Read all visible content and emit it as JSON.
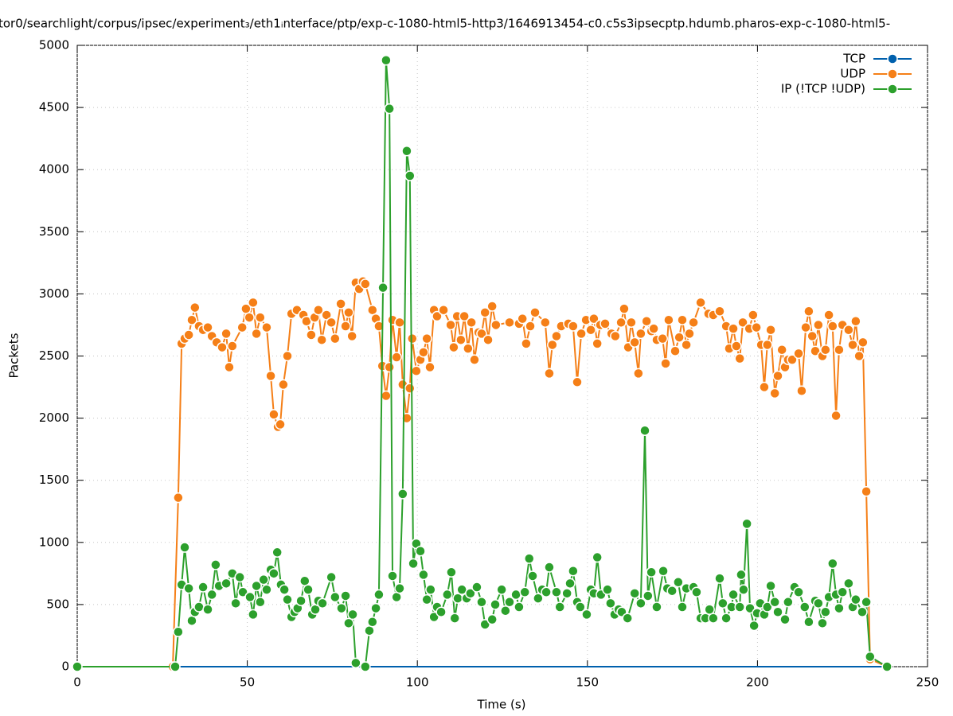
{
  "chart_data": {
    "type": "line",
    "title": "tor0/searchlight/corpus/ipsec/experiment₃/eth1ᵢnterface/ptp/exp-c-1080-html5-http3/1646913454-c0.c5s3ipsecptp.hdumb.pharos-exp-c-1080-html5-",
    "x_label": "Time (s)",
    "y_label": "Packets",
    "xlim": [
      0,
      250
    ],
    "xticks": [
      0,
      50,
      100,
      150,
      200,
      250
    ],
    "ylim": [
      0,
      5000
    ],
    "yticks": [
      0,
      500,
      1000,
      1500,
      2000,
      2500,
      3000,
      3500,
      4000,
      4500,
      5000
    ],
    "grid": true,
    "legend": "upper right",
    "series": [
      {
        "name": "TCP",
        "color": "#0060ad",
        "x": [
          0,
          238.1
        ],
        "values": [
          0,
          0
        ]
      },
      {
        "name": "UDP",
        "color": "#f57f17",
        "x": [
          0,
          28.1,
          29.7,
          30.7,
          31.6,
          32.8,
          33.7,
          34.6,
          35.8,
          37.0,
          38.4,
          39.6,
          41.0,
          42.6,
          43.8,
          44.7,
          45.6,
          48.5,
          49.6,
          50.6,
          51.7,
          52.7,
          53.8,
          55.7,
          56.9,
          57.8,
          59.0,
          59.7,
          60.6,
          61.8,
          63.0,
          64.6,
          66.5,
          67.4,
          68.8,
          69.8,
          70.9,
          71.9,
          73.3,
          74.7,
          75.8,
          77.5,
          78.9,
          79.8,
          80.8,
          81.9,
          82.9,
          84.0,
          84.7,
          86.8,
          87.8,
          88.7,
          89.7,
          90.8,
          91.8,
          92.7,
          93.9,
          94.8,
          95.7,
          96.9,
          97.8,
          98.5,
          99.7,
          100.9,
          101.8,
          102.8,
          103.7,
          104.9,
          105.8,
          107.7,
          109.8,
          110.7,
          111.7,
          112.8,
          113.8,
          114.9,
          115.9,
          116.8,
          118.0,
          118.9,
          119.9,
          120.8,
          122.0,
          123.1,
          127.1,
          129.9,
          130.9,
          132.0,
          133.2,
          134.6,
          137.6,
          138.8,
          139.7,
          140.9,
          142.3,
          144.4,
          145.8,
          147.0,
          148.2,
          149.6,
          151.0,
          151.9,
          152.9,
          153.8,
          155.2,
          157.1,
          158.2,
          159.9,
          160.8,
          162.0,
          162.9,
          163.9,
          165.0,
          165.7,
          167.4,
          168.8,
          169.5,
          170.4,
          172.1,
          173.0,
          173.9,
          175.8,
          177.0,
          177.9,
          179.1,
          180.0,
          181.2,
          183.3,
          185.6,
          187.0,
          188.9,
          190.8,
          191.7,
          192.9,
          193.8,
          194.8,
          195.7,
          197.6,
          198.7,
          199.7,
          201.1,
          202.0,
          202.9,
          203.9,
          205.1,
          206.0,
          207.2,
          208.1,
          209.0,
          210.2,
          212.1,
          213.0,
          214.2,
          215.1,
          216.1,
          217.0,
          217.9,
          219.1,
          220.0,
          221.0,
          222.1,
          223.1,
          224.0,
          225.0,
          226.8,
          228.0,
          228.9,
          229.9,
          231.0,
          232.0,
          233.1,
          238.1
        ],
        "values": [
          0,
          0,
          1360,
          2600,
          2640,
          2670,
          2790,
          2890,
          2740,
          2710,
          2730,
          2660,
          2610,
          2570,
          2680,
          2410,
          2580,
          2730,
          2880,
          2810,
          2930,
          2680,
          2810,
          2730,
          2340,
          2030,
          1930,
          1950,
          2270,
          2500,
          2840,
          2870,
          2830,
          2780,
          2670,
          2810,
          2870,
          2630,
          2830,
          2770,
          2640,
          2920,
          2740,
          2850,
          2660,
          3090,
          3040,
          3100,
          3080,
          2870,
          2800,
          2740,
          2420,
          2180,
          2410,
          2790,
          2490,
          2770,
          2270,
          2000,
          2240,
          2640,
          2380,
          2470,
          2530,
          2640,
          2410,
          2870,
          2820,
          2870,
          2750,
          2570,
          2820,
          2630,
          2820,
          2560,
          2770,
          2470,
          2690,
          2680,
          2850,
          2630,
          2900,
          2750,
          2770,
          2760,
          2800,
          2600,
          2740,
          2850,
          2770,
          2360,
          2590,
          2660,
          2740,
          2760,
          2740,
          2290,
          2680,
          2790,
          2710,
          2800,
          2600,
          2750,
          2760,
          2680,
          2660,
          2770,
          2880,
          2570,
          2770,
          2610,
          2360,
          2680,
          2780,
          2700,
          2720,
          2630,
          2640,
          2440,
          2790,
          2540,
          2650,
          2790,
          2590,
          2680,
          2770,
          2930,
          2840,
          2830,
          2860,
          2740,
          2560,
          2720,
          2580,
          2480,
          2770,
          2720,
          2830,
          2730,
          2590,
          2250,
          2590,
          2710,
          2200,
          2340,
          2550,
          2410,
          2470,
          2470,
          2520,
          2220,
          2730,
          2860,
          2660,
          2540,
          2750,
          2500,
          2550,
          2830,
          2740,
          2020,
          2550,
          2750,
          2710,
          2590,
          2780,
          2500,
          2610,
          1410,
          60,
          0
        ]
      },
      {
        "name": "IP (!TCP  !UDP)",
        "color": "#2ca02c",
        "x": [
          0,
          28.8,
          29.7,
          30.7,
          31.6,
          32.8,
          33.7,
          34.6,
          35.8,
          37.0,
          38.4,
          39.6,
          40.7,
          41.7,
          43.8,
          45.6,
          46.6,
          47.8,
          48.7,
          50.8,
          51.7,
          52.7,
          53.8,
          54.8,
          55.7,
          56.9,
          57.8,
          58.8,
          59.9,
          60.9,
          61.8,
          63.0,
          63.9,
          64.8,
          65.8,
          66.9,
          67.9,
          69.1,
          70.0,
          70.9,
          72.1,
          74.7,
          75.8,
          77.7,
          78.9,
          79.8,
          81.0,
          81.9,
          84.7,
          85.9,
          86.8,
          87.8,
          88.7,
          89.9,
          90.8,
          91.8,
          92.7,
          93.9,
          94.8,
          95.7,
          96.9,
          97.8,
          98.8,
          99.7,
          100.9,
          101.8,
          102.8,
          103.9,
          104.9,
          105.8,
          107.0,
          108.8,
          110.0,
          111.0,
          111.9,
          113.1,
          114.5,
          115.6,
          117.5,
          118.9,
          119.9,
          122.0,
          122.9,
          124.8,
          125.9,
          127.1,
          129.0,
          129.9,
          131.6,
          132.9,
          133.9,
          135.5,
          136.7,
          137.9,
          138.8,
          140.9,
          141.9,
          144.0,
          144.9,
          145.8,
          147.0,
          147.9,
          149.8,
          151.0,
          151.9,
          152.9,
          154.0,
          155.9,
          156.8,
          158.0,
          159.2,
          160.1,
          161.8,
          163.9,
          165.7,
          166.9,
          167.8,
          168.8,
          170.4,
          172.3,
          173.5,
          174.9,
          176.7,
          177.9,
          179.1,
          181.2,
          182.1,
          183.3,
          184.7,
          185.9,
          187.0,
          188.9,
          189.8,
          190.8,
          192.4,
          192.9,
          194.8,
          195.2,
          195.9,
          196.9,
          197.8,
          199.0,
          199.9,
          200.8,
          202.0,
          202.9,
          203.9,
          205.1,
          206.0,
          208.1,
          209.0,
          210.9,
          212.1,
          213.9,
          215.1,
          217.0,
          217.9,
          219.1,
          220.0,
          221.0,
          222.1,
          223.1,
          224.0,
          225.0,
          226.8,
          228.0,
          228.9,
          230.8,
          232.0,
          233.1,
          238.1
        ],
        "values": [
          0,
          0,
          280,
          660,
          960,
          630,
          370,
          440,
          480,
          640,
          460,
          580,
          820,
          650,
          670,
          750,
          510,
          720,
          600,
          560,
          420,
          650,
          520,
          700,
          620,
          780,
          750,
          920,
          660,
          620,
          540,
          400,
          440,
          470,
          530,
          690,
          620,
          420,
          460,
          530,
          510,
          720,
          560,
          470,
          570,
          350,
          420,
          30,
          0,
          290,
          360,
          470,
          580,
          3050,
          4880,
          4490,
          730,
          560,
          630,
          1390,
          4150,
          3950,
          830,
          990,
          930,
          740,
          540,
          620,
          400,
          480,
          440,
          580,
          760,
          390,
          550,
          620,
          550,
          590,
          640,
          520,
          340,
          380,
          500,
          620,
          450,
          520,
          580,
          480,
          600,
          870,
          730,
          550,
          620,
          600,
          800,
          600,
          480,
          590,
          670,
          770,
          520,
          480,
          420,
          620,
          590,
          880,
          580,
          620,
          510,
          420,
          460,
          440,
          390,
          590,
          510,
          1900,
          570,
          760,
          480,
          770,
          630,
          610,
          680,
          480,
          630,
          640,
          600,
          390,
          390,
          460,
          390,
          710,
          510,
          390,
          480,
          580,
          480,
          740,
          620,
          1150,
          470,
          330,
          430,
          510,
          420,
          480,
          650,
          520,
          440,
          380,
          520,
          640,
          600,
          480,
          360,
          530,
          510,
          350,
          440,
          560,
          830,
          580,
          470,
          600,
          670,
          480,
          540,
          440,
          520,
          80,
          0
        ]
      }
    ]
  }
}
